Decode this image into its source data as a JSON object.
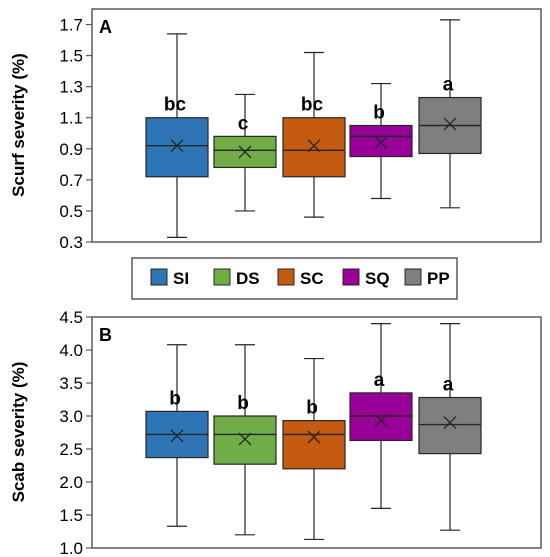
{
  "legend": {
    "items": [
      {
        "name": "SI",
        "color": "#2e75b6"
      },
      {
        "name": "DS",
        "color": "#70ad47"
      },
      {
        "name": "SC",
        "color": "#c55a11"
      },
      {
        "name": "SQ",
        "color": "#990099"
      },
      {
        "name": "PP",
        "color": "#7f7f7f"
      }
    ]
  },
  "chart_data": [
    {
      "type": "box",
      "panel_label": "A",
      "ylabel": "Scurf severity (%)",
      "ylim": [
        0.3,
        1.8
      ],
      "yticks": [
        0.3,
        0.5,
        0.7,
        0.9,
        1.1,
        1.3,
        1.5,
        1.7
      ],
      "tick_decimals": 1,
      "grid": false,
      "categories": [
        "SI",
        "DS",
        "SC",
        "SQ",
        "PP"
      ],
      "boxes": [
        {
          "min": 0.33,
          "q1": 0.72,
          "median": 0.92,
          "q3": 1.1,
          "max": 1.64,
          "mean": 0.92,
          "group": "bc"
        },
        {
          "min": 0.5,
          "q1": 0.78,
          "median": 0.89,
          "q3": 0.98,
          "max": 1.25,
          "mean": 0.88,
          "group": "c"
        },
        {
          "min": 0.46,
          "q1": 0.72,
          "median": 0.89,
          "q3": 1.1,
          "max": 1.52,
          "mean": 0.92,
          "group": "bc"
        },
        {
          "min": 0.58,
          "q1": 0.85,
          "median": 0.98,
          "q3": 1.05,
          "max": 1.32,
          "mean": 0.94,
          "group": "b"
        },
        {
          "min": 0.52,
          "q1": 0.87,
          "median": 1.05,
          "q3": 1.23,
          "max": 1.73,
          "mean": 1.06,
          "group": "a"
        }
      ]
    },
    {
      "type": "box",
      "panel_label": "B",
      "ylabel": "Scab severity (%)",
      "ylim": [
        1.0,
        4.5
      ],
      "yticks": [
        1.0,
        1.5,
        2.0,
        2.5,
        3.0,
        3.5,
        4.0,
        4.5
      ],
      "tick_decimals": 1,
      "grid": false,
      "categories": [
        "SI",
        "DS",
        "SC",
        "SQ",
        "PP"
      ],
      "boxes": [
        {
          "min": 1.33,
          "q1": 2.37,
          "median": 2.72,
          "q3": 3.07,
          "max": 4.08,
          "mean": 2.7,
          "group": "b"
        },
        {
          "min": 1.2,
          "q1": 2.27,
          "median": 2.72,
          "q3": 3.0,
          "max": 4.08,
          "mean": 2.65,
          "group": "b"
        },
        {
          "min": 1.13,
          "q1": 2.2,
          "median": 2.72,
          "q3": 2.93,
          "max": 3.87,
          "mean": 2.68,
          "group": "b"
        },
        {
          "min": 1.6,
          "q1": 2.63,
          "median": 3.0,
          "q3": 3.35,
          "max": 4.4,
          "mean": 2.93,
          "group": "a"
        },
        {
          "min": 1.27,
          "q1": 2.43,
          "median": 2.87,
          "q3": 3.28,
          "max": 4.4,
          "mean": 2.9,
          "group": "a"
        }
      ]
    }
  ]
}
